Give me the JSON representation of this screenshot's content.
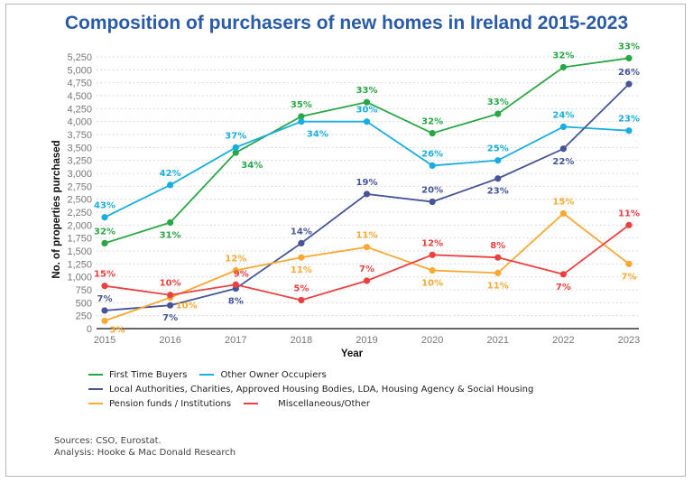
{
  "chart_data": {
    "type": "line",
    "title": "Composition of purchasers of new homes in Ireland 2015-2023",
    "xlabel": "Year",
    "ylabel": "No. of properties purchased",
    "ylim": [
      0,
      5250
    ],
    "ytick_step": 250,
    "grid": "horizontal dotted",
    "legend_position": "bottom",
    "x": [
      "2015",
      "2016",
      "2017",
      "2018",
      "2019",
      "2020",
      "2021",
      "2022",
      "2023"
    ],
    "yticks": [
      "0",
      "250",
      "500",
      "750",
      "1,000",
      "1,250",
      "1,500",
      "1,750",
      "2,000",
      "2,250",
      "2,500",
      "2,750",
      "3,000",
      "3,250",
      "3,500",
      "3,750",
      "4,000",
      "4,250",
      "4,500",
      "4,750",
      "5,000",
      "5,250"
    ],
    "series": [
      {
        "name": "First Time Buyers",
        "color": "#27a844",
        "values": [
          1650,
          2050,
          3400,
          4100,
          4375,
          3775,
          4150,
          5050,
          5225
        ],
        "labels": [
          "32%",
          "31%",
          "34%",
          "35%",
          "33%",
          "32%",
          "33%",
          "32%",
          "33%"
        ]
      },
      {
        "name": "Other Owner Occupiers",
        "color": "#1aaee0",
        "values": [
          2150,
          2775,
          3500,
          4000,
          4000,
          3150,
          3250,
          3900,
          3825
        ],
        "labels": [
          "43%",
          "42%",
          "37%",
          "34%",
          "30%",
          "26%",
          "25%",
          "24%",
          "23%"
        ]
      },
      {
        "name": "Local Authorities, Charities, Approved Housing Bodies, LDA, Housing Agency & Social Housing",
        "color": "#46559a",
        "values": [
          350,
          450,
          775,
          1650,
          2600,
          2450,
          2900,
          3475,
          4725
        ],
        "labels": [
          "7%",
          "7%",
          "8%",
          "14%",
          "19%",
          "20%",
          "23%",
          "22%",
          "26%"
        ]
      },
      {
        "name": "Pension funds / Institutions",
        "color": "#f9a832",
        "values": [
          150,
          600,
          1125,
          1375,
          1575,
          1125,
          1075,
          2225,
          1250
        ],
        "labels": [
          "3%",
          "10%",
          "12%",
          "11%",
          "11%",
          "10%",
          "11%",
          "15%",
          "7%"
        ]
      },
      {
        "name": "Miscellaneous/Other",
        "color": "#ec4040",
        "values": [
          825,
          650,
          850,
          550,
          925,
          1425,
          1375,
          1050,
          2000
        ],
        "labels": [
          "15%",
          "10%",
          "9%",
          "5%",
          "7%",
          "12%",
          "8%",
          "7%",
          "11%"
        ]
      }
    ]
  },
  "footer": {
    "sources": "Sources: CSO, Eurostat.",
    "analysis": "Analysis: Hooke & Mac Donald Research"
  }
}
